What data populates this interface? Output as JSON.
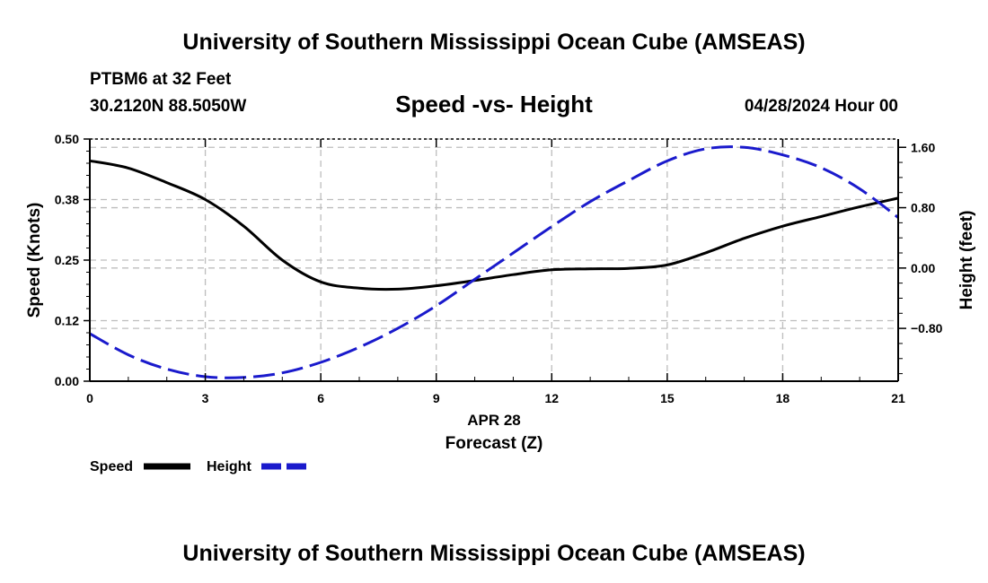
{
  "header": {
    "title": "University of Southern Mississippi Ocean Cube (AMSEAS)",
    "station": "PTBM6 at 32 Feet",
    "location": "30.2120N  88.5050W",
    "datetime": "04/28/2024 Hour 00",
    "footer_title": "University of Southern Mississippi Ocean Cube (AMSEAS)"
  },
  "chart_data": {
    "type": "line",
    "title": "Speed -vs- Height",
    "xlabel": "Forecast (Z)",
    "date_label": "APR 28",
    "ylabel_left": "Speed (Knots)",
    "ylabel_right": "Height (feet)",
    "x_ticks": [
      "0",
      "3",
      "6",
      "9",
      "12",
      "15",
      "18",
      "21"
    ],
    "x_tick_values": [
      0,
      3,
      6,
      9,
      12,
      15,
      18,
      21
    ],
    "y_left_ticks": [
      "0.00",
      "0.12",
      "0.25",
      "0.38",
      "0.50"
    ],
    "y_left_tick_values": [
      0.0,
      0.125,
      0.25,
      0.375,
      0.5
    ],
    "y_right_ticks": [
      "−0.80",
      "0.00",
      "0.80",
      "1.60"
    ],
    "y_right_tick_values": [
      -0.8,
      0.0,
      0.8,
      1.6
    ],
    "xlim": [
      0,
      21
    ],
    "ylim_left": [
      0,
      0.5
    ],
    "ylim_right": [
      -1.5,
      1.71
    ],
    "grid": true,
    "x": [
      0,
      1,
      2,
      3,
      4,
      5,
      6,
      7,
      8,
      9,
      10,
      11,
      12,
      13,
      14,
      15,
      16,
      17,
      18,
      19,
      20,
      21
    ],
    "series": [
      {
        "name": "Speed",
        "axis": "left",
        "color": "#000000",
        "dash": "solid",
        "values": [
          0.455,
          0.44,
          0.41,
          0.375,
          0.32,
          0.25,
          0.205,
          0.192,
          0.19,
          0.197,
          0.208,
          0.22,
          0.23,
          0.232,
          0.233,
          0.24,
          0.265,
          0.295,
          0.32,
          0.34,
          0.36,
          0.378
        ]
      },
      {
        "name": "Height",
        "axis": "right",
        "color": "#1a1acc",
        "dash": "dashed",
        "values": [
          -0.87,
          -1.15,
          -1.34,
          -1.44,
          -1.45,
          -1.39,
          -1.25,
          -1.05,
          -0.8,
          -0.5,
          -0.15,
          0.2,
          0.55,
          0.88,
          1.16,
          1.42,
          1.58,
          1.6,
          1.5,
          1.33,
          1.05,
          0.67
        ]
      }
    ],
    "legend": [
      "Speed",
      "Height"
    ],
    "legend_position": "bottom-left"
  }
}
